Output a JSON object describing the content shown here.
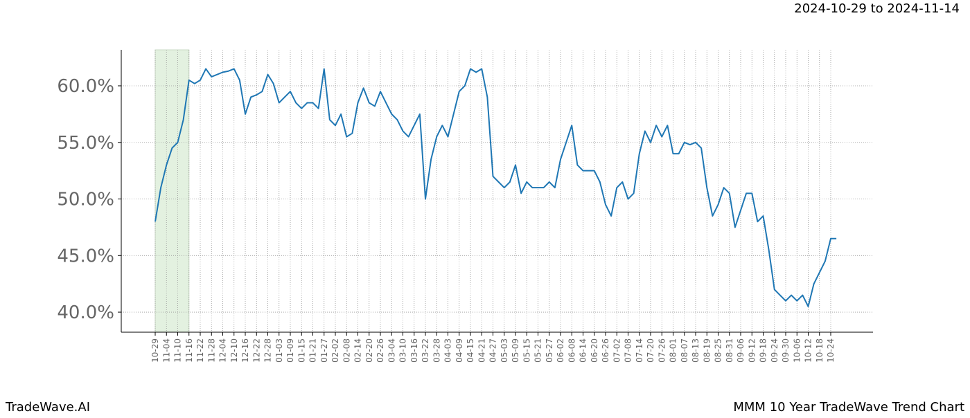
{
  "chart_data": {
    "type": "line",
    "title": "MMM 10 Year TradeWave Trend Chart",
    "subtitle": "2024-10-29 to 2024-11-14",
    "brand": "TradeWave.AI",
    "categories": [
      "10-29",
      null,
      "11-04",
      null,
      "11-10",
      null,
      "11-16",
      null,
      "11-22",
      null,
      "11-28",
      null,
      "12-04",
      null,
      "12-10",
      null,
      "12-16",
      null,
      "12-22",
      null,
      "12-28",
      null,
      "01-03",
      null,
      "01-09",
      null,
      "01-15",
      null,
      "01-21",
      null,
      "01-27",
      null,
      "02-02",
      null,
      "02-08",
      null,
      "02-14",
      null,
      "02-20",
      null,
      "02-26",
      null,
      "03-04",
      null,
      "03-10",
      null,
      "03-16",
      null,
      "03-22",
      null,
      "03-28",
      null,
      "04-03",
      null,
      "04-09",
      null,
      "04-15",
      null,
      "04-21",
      null,
      "04-27",
      null,
      "05-03",
      null,
      "05-09",
      null,
      "05-15",
      null,
      "05-21",
      null,
      "05-27",
      null,
      "06-02",
      null,
      "06-08",
      null,
      "06-14",
      null,
      "06-20",
      null,
      "06-26",
      null,
      "07-02",
      null,
      "07-08",
      null,
      "07-14",
      null,
      "07-20",
      null,
      "07-26",
      null,
      "08-01",
      null,
      "08-07",
      null,
      "08-13",
      null,
      "08-19",
      null,
      "08-25",
      null,
      "08-31",
      null,
      "09-06",
      null,
      "09-12",
      null,
      "09-18",
      null,
      "09-24",
      null,
      "09-30",
      null,
      "10-06",
      null,
      "10-12",
      null,
      "10-18",
      null,
      "10-24",
      null
    ],
    "series": [
      {
        "color": "#1f77b4",
        "values": [
          48.0,
          51,
          53,
          54.5,
          55,
          57,
          60.5,
          60.2,
          60.5,
          61.5,
          60.8,
          61,
          61.2,
          61.3,
          61.5,
          60.5,
          57.5,
          59.0,
          59.2,
          59.5,
          61,
          60.2,
          58.5,
          59,
          59.5,
          58.5,
          58,
          58.5,
          58.5,
          58,
          61.5,
          57,
          56.5,
          57.5,
          55.5,
          55.8,
          58.5,
          59.8,
          58.5,
          58.2,
          59.5,
          58.5,
          57.5,
          57,
          56,
          55.5,
          56.5,
          57.5,
          50,
          53.5,
          55.5,
          56.5,
          55.5,
          57.5,
          59.5,
          60,
          61.5,
          61.2,
          61.5,
          59,
          52,
          51.5,
          51,
          51.5,
          53,
          50.5,
          51.5,
          51,
          51,
          51,
          51.5,
          51,
          53.5,
          55,
          56.5,
          53,
          52.5,
          52.5,
          52.5,
          51.5,
          49.5,
          48.5,
          51,
          51.5,
          50,
          50.5,
          54,
          56,
          55,
          56.5,
          55.5,
          56.5,
          54,
          54,
          55,
          54.8,
          55,
          54.5,
          51,
          48.5,
          49.5,
          51,
          50.5,
          47.5,
          49,
          50.5,
          50.5,
          48,
          48.5,
          45.5,
          42,
          41.5,
          41,
          41.5,
          41,
          41.5,
          40.5,
          42.5,
          43.5,
          44.5,
          46.5,
          46.5
        ]
      }
    ],
    "ylim": [
      38.23,
      63.18
    ],
    "yticks": [
      {
        "value": 40,
        "label": "40.0%"
      },
      {
        "value": 45,
        "label": "45.0%"
      },
      {
        "value": 50,
        "label": "50.0%"
      },
      {
        "value": 55,
        "label": "55.0%"
      },
      {
        "value": 60,
        "label": "60.0%"
      }
    ],
    "grid": true,
    "highlight_categories": [
      "10-29",
      "11-16"
    ],
    "highlight_color": "#e3f1e0"
  }
}
